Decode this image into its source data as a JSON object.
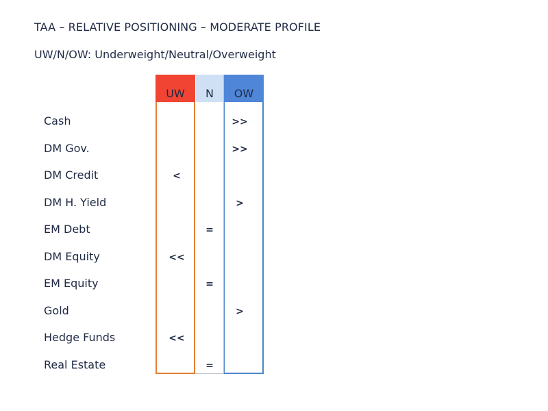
{
  "title": "TAA – RELATIVE POSITIONING – MODERATE PROFILE",
  "subtitle": "UW/N/OW: Underweight/Neutral/Overweight",
  "columns": {
    "uw": "UW",
    "n": "N",
    "ow": "OW"
  },
  "colors": {
    "uw": "#f24432",
    "n": "#cfe0f5",
    "ow": "#4f86d8"
  },
  "rows": [
    {
      "label": "Cash",
      "column": "OW",
      "mark": ">>"
    },
    {
      "label": "DM Gov.",
      "column": "OW",
      "mark": ">>"
    },
    {
      "label": "DM Credit",
      "column": "UW",
      "mark": "<"
    },
    {
      "label": "DM H. Yield",
      "column": "OW",
      "mark": ">"
    },
    {
      "label": "EM Debt",
      "column": "N",
      "mark": "="
    },
    {
      "label": "DM Equity",
      "column": "UW",
      "mark": "<<"
    },
    {
      "label": "EM Equity",
      "column": "N",
      "mark": "="
    },
    {
      "label": "Gold",
      "column": "OW",
      "mark": ">"
    },
    {
      "label": "Hedge Funds",
      "column": "UW",
      "mark": "<<"
    },
    {
      "label": "Real Estate",
      "column": "N",
      "mark": "="
    }
  ]
}
